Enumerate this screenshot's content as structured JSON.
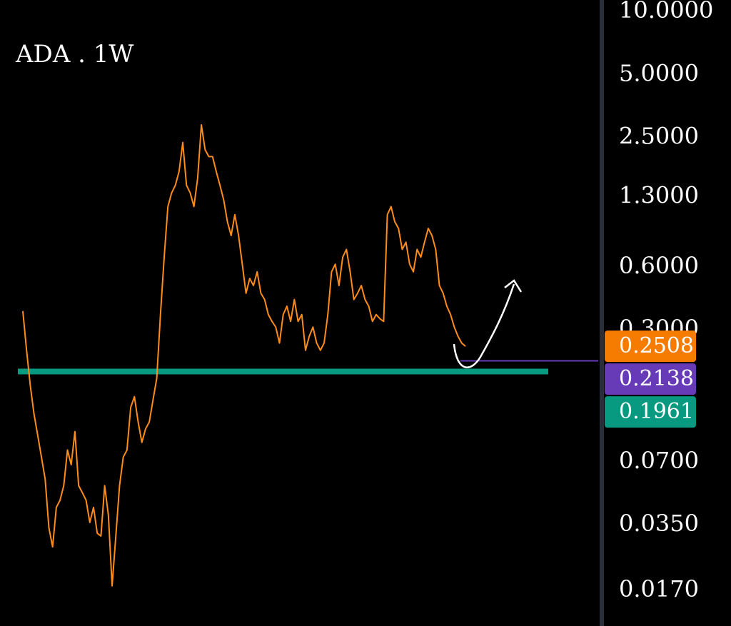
{
  "chart_data": {
    "type": "line",
    "title": "ADA . 1W",
    "color": "#ff8c1a",
    "log_scale": true,
    "ylim": [
      0.0115,
      11.4
    ],
    "yticks": [
      {
        "value": 10,
        "label": "10.0000"
      },
      {
        "value": 5,
        "label": "5.0000"
      },
      {
        "value": 2.5,
        "label": "2.5000"
      },
      {
        "value": 1.3,
        "label": "1.3000"
      },
      {
        "value": 0.6,
        "label": "0.6000"
      },
      {
        "value": 0.3,
        "label": "0.3000"
      },
      {
        "value": 0.07,
        "label": "0.0700"
      },
      {
        "value": 0.035,
        "label": "0.0350"
      },
      {
        "value": 0.017,
        "label": "0.0170"
      }
    ],
    "values": [
      0.37,
      0.24,
      0.163,
      0.119,
      0.094,
      0.074,
      0.058,
      0.034,
      0.0275,
      0.0425,
      0.046,
      0.054,
      0.08,
      0.068,
      0.098,
      0.054,
      0.05,
      0.046,
      0.036,
      0.0425,
      0.032,
      0.031,
      0.054,
      0.039,
      0.0179,
      0.031,
      0.054,
      0.074,
      0.08,
      0.128,
      0.144,
      0.109,
      0.087,
      0.101,
      0.109,
      0.139,
      0.176,
      0.356,
      0.67,
      1.17,
      1.36,
      1.48,
      1.72,
      2.37,
      1.48,
      1.36,
      1.17,
      1.6,
      2.88,
      2.19,
      2.03,
      2.03,
      1.72,
      1.48,
      1.26,
      0.99,
      0.85,
      1.07,
      0.85,
      0.62,
      0.45,
      0.53,
      0.49,
      0.57,
      0.45,
      0.42,
      0.356,
      0.33,
      0.31,
      0.26,
      0.356,
      0.39,
      0.33,
      0.42,
      0.33,
      0.356,
      0.24,
      0.28,
      0.31,
      0.26,
      0.24,
      0.26,
      0.356,
      0.57,
      0.62,
      0.49,
      0.67,
      0.73,
      0.57,
      0.42,
      0.45,
      0.49,
      0.42,
      0.39,
      0.33,
      0.356,
      0.34,
      0.33,
      1.07,
      1.17,
      0.99,
      0.92,
      0.73,
      0.79,
      0.62,
      0.57,
      0.73,
      0.67,
      0.79,
      0.92,
      0.85,
      0.73,
      0.49,
      0.45,
      0.39,
      0.356,
      0.31,
      0.28,
      0.26,
      0.2508
    ],
    "levels": [
      {
        "value": 0.2508,
        "color": "#f57c00"
      },
      {
        "value": 0.2138,
        "color": "#673ab7"
      },
      {
        "value": 0.1961,
        "color": "#089981"
      }
    ]
  }
}
